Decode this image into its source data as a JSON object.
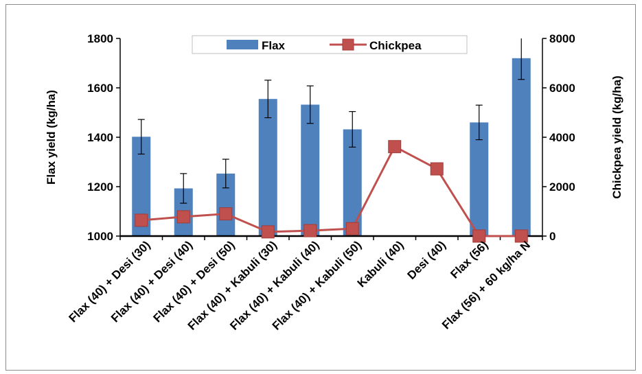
{
  "chart_data": {
    "type": "bar",
    "categories": [
      "Flax (40)  + Desi (30)",
      "Flax (40) + Desi (40)",
      "Flax (40) + Desi (50)",
      "Flax (40)  + Kabuli (30)",
      "Flax (40) + Kabuli (40)",
      "Flax (40) + Kabuli (50)",
      "Kabuli  (40)",
      "Desi (40)",
      "Flax (56)",
      "Flax (56) + 60 kg/ha N"
    ],
    "series": [
      {
        "name": "Flax",
        "type": "bar",
        "axis": "left",
        "color": "#4f81bd",
        "values": [
          1402,
          1193,
          1253,
          1555,
          1532,
          1432,
          null,
          null,
          1460,
          1720
        ],
        "error": [
          70,
          60,
          58,
          76,
          76,
          72,
          null,
          null,
          70,
          86
        ]
      },
      {
        "name": "Chickpea",
        "type": "line",
        "axis": "right",
        "color": "#c0504d",
        "values": [
          640,
          780,
          900,
          170,
          220,
          300,
          3620,
          2720,
          0,
          0
        ]
      }
    ],
    "ylabel": "Flax yield (kg/ha)",
    "y2label": "Chickpea yield (kg/ha)",
    "ylim": [
      1000,
      1800
    ],
    "y2lim": [
      0,
      8000
    ],
    "yticks": [
      "1000",
      "1200",
      "1400",
      "1600",
      "1800"
    ],
    "y2ticks": [
      "0",
      "2000",
      "4000",
      "6000",
      "8000"
    ],
    "legend_position": "top-center",
    "grid": false
  }
}
